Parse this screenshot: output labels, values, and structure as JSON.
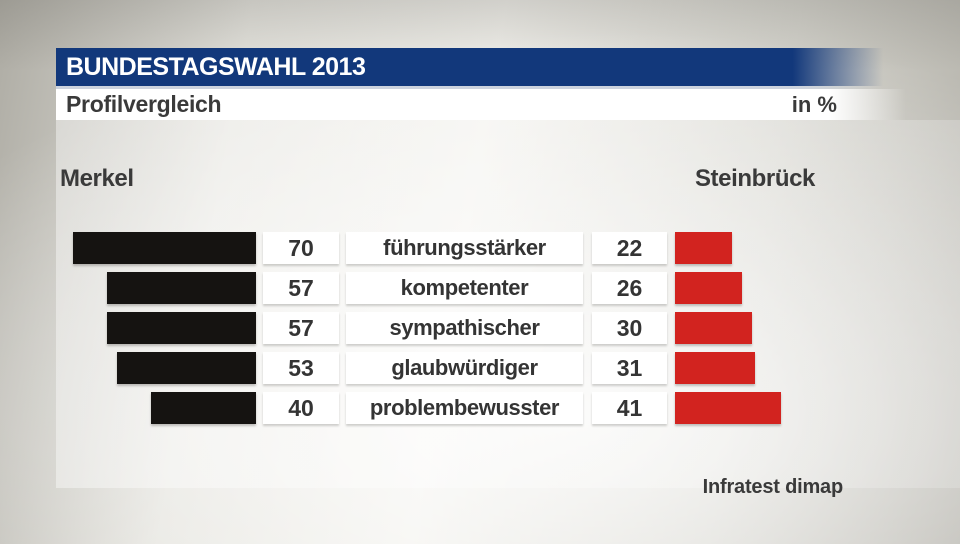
{
  "header": {
    "title": "BUNDESTAGSWAHL 2013",
    "subtitle": "Profilvergleich",
    "unit": "in %"
  },
  "candidates": {
    "left": "Merkel",
    "right": "Steinbrück"
  },
  "source": "Infratest dimap",
  "colors": {
    "header_blue": "#12387b",
    "left_bar": "#151311",
    "right_bar": "#d2231f",
    "text_dark": "#3a3a3a"
  },
  "chart_data": {
    "type": "bar",
    "orientation": "horizontal-diverging",
    "title": "Profilvergleich",
    "unit": "%",
    "categories": [
      "führungsstärker",
      "kompetenter",
      "sympathischer",
      "glaubwürdiger",
      "problembewusster"
    ],
    "series": [
      {
        "name": "Merkel",
        "color": "#151311",
        "values": [
          70,
          57,
          57,
          53,
          40
        ]
      },
      {
        "name": "Steinbrück",
        "color": "#d2231f",
        "values": [
          22,
          26,
          30,
          31,
          41
        ]
      }
    ],
    "value_range": [
      0,
      100
    ],
    "grid": false,
    "legend_position": "above-as-names",
    "source": "Infratest dimap"
  }
}
